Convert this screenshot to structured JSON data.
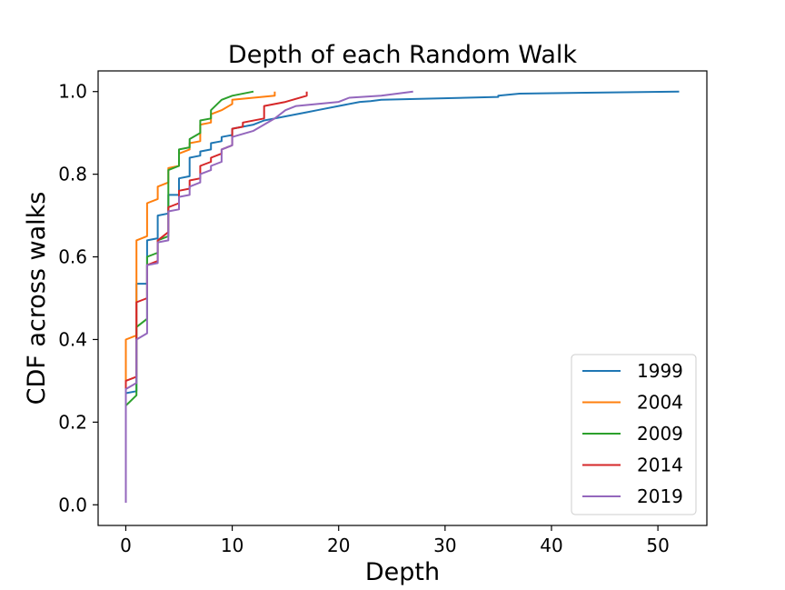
{
  "chart_data": {
    "type": "line",
    "title": "Depth of each Random Walk",
    "xlabel": "Depth",
    "ylabel": "CDF across walks",
    "xlim": [
      -2.6,
      54.6
    ],
    "ylim": [
      -0.05,
      1.05
    ],
    "xticks": [
      0,
      10,
      20,
      30,
      40,
      50
    ],
    "yticks": [
      0.0,
      0.2,
      0.4,
      0.6,
      0.8,
      1.0
    ],
    "xtick_labels": [
      "0",
      "10",
      "20",
      "30",
      "40",
      "50"
    ],
    "ytick_labels": [
      "0.0",
      "0.2",
      "0.4",
      "0.6",
      "0.8",
      "1.0"
    ],
    "grid": false,
    "legend_position": "lower-right",
    "series": [
      {
        "name": "1999",
        "color": "#1f77b4",
        "x": [
          0,
          0,
          1,
          1,
          2,
          2,
          3,
          3,
          4,
          4,
          5,
          5,
          6,
          6,
          7,
          7,
          8,
          8,
          9,
          9,
          10,
          10,
          11,
          12,
          13,
          14,
          15,
          17,
          18,
          20,
          22,
          23,
          24,
          35,
          35,
          37,
          52
        ],
        "y": [
          0.005,
          0.27,
          0.275,
          0.535,
          0.535,
          0.64,
          0.645,
          0.7,
          0.705,
          0.75,
          0.75,
          0.79,
          0.795,
          0.84,
          0.845,
          0.855,
          0.86,
          0.875,
          0.88,
          0.89,
          0.895,
          0.91,
          0.915,
          0.92,
          0.93,
          0.935,
          0.94,
          0.95,
          0.955,
          0.965,
          0.975,
          0.977,
          0.98,
          0.987,
          0.99,
          0.995,
          1.0
        ]
      },
      {
        "name": "2004",
        "color": "#ff7f0e",
        "x": [
          0,
          0,
          1,
          1,
          2,
          2,
          3,
          3,
          4,
          4,
          5,
          5,
          6,
          6,
          7,
          7,
          8,
          8,
          9,
          10,
          10,
          12,
          14,
          14
        ],
        "y": [
          0.005,
          0.4,
          0.41,
          0.64,
          0.65,
          0.73,
          0.74,
          0.77,
          0.78,
          0.815,
          0.82,
          0.85,
          0.86,
          0.875,
          0.88,
          0.92,
          0.925,
          0.945,
          0.955,
          0.97,
          0.98,
          0.985,
          0.99,
          1.0
        ]
      },
      {
        "name": "2009",
        "color": "#2ca02c",
        "x": [
          0,
          0,
          1,
          1,
          2,
          2,
          3,
          3,
          4,
          4,
          5,
          5,
          6,
          6,
          7,
          7,
          8,
          8,
          9,
          10,
          12
        ],
        "y": [
          0.005,
          0.24,
          0.265,
          0.43,
          0.45,
          0.6,
          0.61,
          0.64,
          0.65,
          0.81,
          0.82,
          0.86,
          0.865,
          0.885,
          0.9,
          0.93,
          0.935,
          0.955,
          0.98,
          0.99,
          1.0
        ]
      },
      {
        "name": "2014",
        "color": "#d62728",
        "x": [
          0,
          0,
          1,
          1,
          2,
          2,
          3,
          3,
          4,
          4,
          5,
          5,
          6,
          6,
          7,
          7,
          8,
          8,
          9,
          9,
          10,
          10,
          11,
          11,
          13,
          13,
          15,
          17,
          17
        ],
        "y": [
          0.005,
          0.3,
          0.31,
          0.49,
          0.5,
          0.58,
          0.59,
          0.64,
          0.66,
          0.72,
          0.73,
          0.76,
          0.765,
          0.785,
          0.79,
          0.82,
          0.83,
          0.84,
          0.85,
          0.86,
          0.87,
          0.91,
          0.915,
          0.925,
          0.935,
          0.965,
          0.975,
          0.99,
          1.0
        ]
      },
      {
        "name": "2019",
        "color": "#9467bd",
        "x": [
          0,
          0,
          1,
          1,
          2,
          2,
          3,
          3,
          4,
          4,
          5,
          5,
          6,
          6,
          7,
          7,
          8,
          8,
          9,
          9,
          10,
          10,
          12,
          14,
          15,
          16,
          20,
          21,
          24,
          27
        ],
        "y": [
          0.005,
          0.28,
          0.295,
          0.4,
          0.415,
          0.58,
          0.585,
          0.635,
          0.64,
          0.71,
          0.715,
          0.745,
          0.75,
          0.77,
          0.78,
          0.8,
          0.81,
          0.82,
          0.83,
          0.86,
          0.87,
          0.89,
          0.905,
          0.935,
          0.955,
          0.965,
          0.975,
          0.985,
          0.99,
          1.0
        ]
      }
    ]
  }
}
